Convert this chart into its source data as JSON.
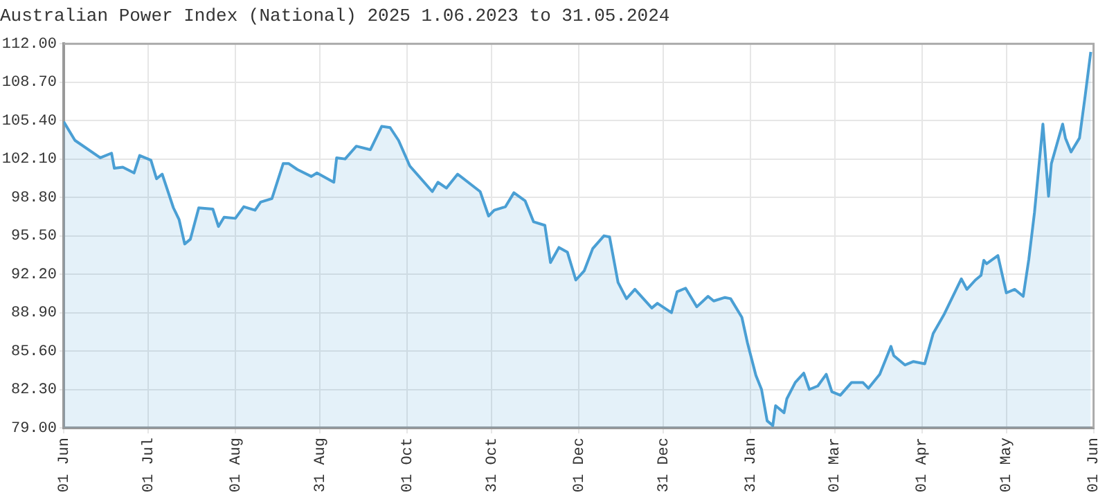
{
  "chart_data": {
    "type": "area",
    "title": "Australian Power Index (National) 2025 1.06.2023 to 31.05.2024",
    "x": [
      "2023-06-01",
      "2023-06-05",
      "2023-06-14",
      "2023-06-18",
      "2023-06-19",
      "2023-06-22",
      "2023-06-26",
      "2023-06-28",
      "2023-07-02",
      "2023-07-04",
      "2023-07-06",
      "2023-07-10",
      "2023-07-12",
      "2023-07-14",
      "2023-07-16",
      "2023-07-19",
      "2023-07-24",
      "2023-07-26",
      "2023-07-28",
      "2023-08-01",
      "2023-08-04",
      "2023-08-08",
      "2023-08-10",
      "2023-08-14",
      "2023-08-18",
      "2023-08-20",
      "2023-08-23",
      "2023-08-28",
      "2023-08-30",
      "2023-09-05",
      "2023-09-06",
      "2023-09-09",
      "2023-09-13",
      "2023-09-18",
      "2023-09-22",
      "2023-09-25",
      "2023-09-28",
      "2023-10-02",
      "2023-10-10",
      "2023-10-12",
      "2023-10-15",
      "2023-10-19",
      "2023-10-27",
      "2023-10-30",
      "2023-11-01",
      "2023-11-05",
      "2023-11-08",
      "2023-11-12",
      "2023-11-15",
      "2023-11-19",
      "2023-11-21",
      "2023-11-24",
      "2023-11-27",
      "2023-11-30",
      "2023-12-03",
      "2023-12-06",
      "2023-12-10",
      "2023-12-12",
      "2023-12-15",
      "2023-12-18",
      "2023-12-21",
      "2023-12-27",
      "2023-12-29",
      "2024-01-03",
      "2024-01-05",
      "2024-01-08",
      "2024-01-12",
      "2024-01-16",
      "2024-01-18",
      "2024-01-22",
      "2024-01-24",
      "2024-01-28",
      "2024-01-30",
      "2024-02-02",
      "2024-02-04",
      "2024-02-06",
      "2024-02-08",
      "2024-02-09",
      "2024-02-12",
      "2024-02-13",
      "2024-02-16",
      "2024-02-19",
      "2024-02-21",
      "2024-02-24",
      "2024-02-27",
      "2024-02-29",
      "2024-03-03",
      "2024-03-07",
      "2024-03-11",
      "2024-03-13",
      "2024-03-17",
      "2024-03-21",
      "2024-03-22",
      "2024-03-26",
      "2024-03-29",
      "2024-04-02",
      "2024-04-05",
      "2024-04-09",
      "2024-04-15",
      "2024-04-17",
      "2024-04-20",
      "2024-04-22",
      "2024-04-23",
      "2024-04-24",
      "2024-04-28",
      "2024-05-01",
      "2024-05-04",
      "2024-05-07",
      "2024-05-09",
      "2024-05-11",
      "2024-05-14",
      "2024-05-16",
      "2024-05-17",
      "2024-05-21",
      "2024-05-22",
      "2024-05-24",
      "2024-05-27",
      "2024-05-29",
      "2024-05-31"
    ],
    "values": [
      105.3,
      103.7,
      102.2,
      102.6,
      101.3,
      101.4,
      100.9,
      102.4,
      102.0,
      100.4,
      100.8,
      97.9,
      96.9,
      94.8,
      95.2,
      97.9,
      97.8,
      96.3,
      97.1,
      97.0,
      98.0,
      97.7,
      98.4,
      98.7,
      101.7,
      101.7,
      101.2,
      100.6,
      100.9,
      100.1,
      102.2,
      102.1,
      103.2,
      102.9,
      104.9,
      104.8,
      103.7,
      101.5,
      99.3,
      100.1,
      99.6,
      100.8,
      99.3,
      97.2,
      97.7,
      98.0,
      99.2,
      98.5,
      96.7,
      96.4,
      93.2,
      94.5,
      94.1,
      91.7,
      92.5,
      94.4,
      95.5,
      95.4,
      91.5,
      90.1,
      90.9,
      89.3,
      89.7,
      88.9,
      90.7,
      91.0,
      89.4,
      90.3,
      89.9,
      90.2,
      90.1,
      88.5,
      86.3,
      83.5,
      82.3,
      79.6,
      79.2,
      80.9,
      80.3,
      81.5,
      82.9,
      83.7,
      82.3,
      82.6,
      83.6,
      82.1,
      81.8,
      82.9,
      82.9,
      82.4,
      83.6,
      86.0,
      85.2,
      84.4,
      84.7,
      84.5,
      87.1,
      88.8,
      91.8,
      90.9,
      91.7,
      92.1,
      93.4,
      93.1,
      93.8,
      90.6,
      90.9,
      90.3,
      93.5,
      97.5,
      105.1,
      98.9,
      101.7,
      105.1,
      103.9,
      102.7,
      103.9,
      107.5,
      111.3
    ],
    "color": "#4a9fd4",
    "xlim": [
      "2023-06-01",
      "2024-06-01"
    ],
    "xticks": [
      {
        "value": "2023-06-01",
        "label": "01 Jun"
      },
      {
        "value": "2023-07-01",
        "label": "01 Jul"
      },
      {
        "value": "2023-08-01",
        "label": "01 Aug"
      },
      {
        "value": "2023-08-31",
        "label": "31 Aug"
      },
      {
        "value": "2023-10-01",
        "label": "01 Oct"
      },
      {
        "value": "2023-10-31",
        "label": "31 Oct"
      },
      {
        "value": "2023-12-01",
        "label": "01 Dec"
      },
      {
        "value": "2023-12-31",
        "label": "31 Dec"
      },
      {
        "value": "2024-01-31",
        "label": "31 Jan"
      },
      {
        "value": "2024-03-01",
        "label": "01 Mar"
      },
      {
        "value": "2024-04-01",
        "label": "01 Apr"
      },
      {
        "value": "2024-05-01",
        "label": "01 May"
      },
      {
        "value": "2024-06-01",
        "label": "01 Jun"
      }
    ],
    "ylim": [
      79,
      112
    ],
    "yticks": [
      {
        "value": 79,
        "label": "79.00"
      },
      {
        "value": 82.3,
        "label": "82.30"
      },
      {
        "value": 85.6,
        "label": "85.60"
      },
      {
        "value": 88.9,
        "label": "88.90"
      },
      {
        "value": 92.2,
        "label": "92.20"
      },
      {
        "value": 95.5,
        "label": "95.50"
      },
      {
        "value": 98.8,
        "label": "98.80"
      },
      {
        "value": 102.1,
        "label": "102.10"
      },
      {
        "value": 105.4,
        "label": "105.40"
      },
      {
        "value": 108.7,
        "label": "108.70"
      },
      {
        "value": 112,
        "label": "112.00"
      }
    ],
    "grid": true,
    "marker": "none",
    "line_style": "solid"
  }
}
